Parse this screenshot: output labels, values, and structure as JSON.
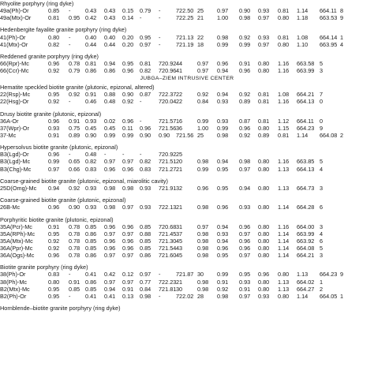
{
  "column_keys": [
    "id",
    "c1",
    "c2",
    "c3",
    "c4",
    "c5",
    "c6",
    "c7",
    "c8",
    "c9",
    "c10",
    "c11",
    "c12",
    "c13",
    "c14",
    "c15",
    "c16",
    "c17"
  ],
  "top_partial_text": "…",
  "blocks": [
    {
      "kind": "title",
      "text": "Rhyolite porphyry (ring dyke)"
    },
    {
      "kind": "row",
      "cells": [
        "49a(Ph)-Or",
        "0.85",
        "-",
        "0.43",
        "0.43",
        "0.15",
        "0.79",
        "-",
        "722.50",
        "25",
        "0.97",
        "0.90",
        "0.93",
        "0.81",
        "1.14",
        "664.11",
        "8"
      ]
    },
    {
      "kind": "row",
      "cells": [
        "49a(Mtx)-Or",
        "0.81",
        "0.95",
        "0.42",
        "0.43",
        "0.14",
        "-",
        "-",
        "722.25",
        "21",
        "1.00",
        "0.98",
        "0.97",
        "0.80",
        "1.18",
        "663.53",
        "9"
      ]
    },
    {
      "kind": "gap"
    },
    {
      "kind": "title",
      "text": "Hedenbergite fayalite granite porphyry (ring dyke)"
    },
    {
      "kind": "row",
      "cells": [
        "41(Ph)-Or",
        "0.80",
        "-",
        "0.40",
        "0.40",
        "0.20",
        "0.95",
        "-",
        "721.13",
        "22",
        "0.98",
        "0.92",
        "0.93",
        "0.81",
        "1.08",
        "664.14",
        "1"
      ]
    },
    {
      "kind": "row",
      "cells": [
        "41(Mtx)-Or",
        "0.82",
        "-",
        "0.44",
        "0.44",
        "0.20",
        "0.97",
        "-",
        "721.19",
        "18",
        "0.99",
        "0.99",
        "0.97",
        "0.80",
        "1.10",
        "663.95",
        "4"
      ]
    },
    {
      "kind": "gap"
    },
    {
      "kind": "title",
      "text": "Reddened granite porphyry (ring dyke)"
    },
    {
      "kind": "row",
      "cells": [
        "66(Rpr)-Mc",
        "0.96",
        "0.78",
        "0.81",
        "0.94",
        "0.95",
        "0.81",
        "720.92",
        "44",
        "0.97",
        "0.96",
        "0.91",
        "0.80",
        "1.16",
        "663.58",
        "5"
      ]
    },
    {
      "kind": "row",
      "cells": [
        "66(Ccr)-Mc",
        "0.92",
        "0.79",
        "0.86",
        "0.86",
        "0.96",
        "0.82",
        "720.96",
        "41",
        "0.97",
        "0.94",
        "0.96",
        "0.80",
        "1.16",
        "663.99",
        "3"
      ]
    },
    {
      "kind": "center",
      "text": "JUBGA–ZIEM INTRUSIVE CENTER"
    },
    {
      "kind": "title",
      "text": "Hematite speckled biotite granite (plutonic, epizonal, altered)"
    },
    {
      "kind": "row",
      "cells": [
        "22(Rsp)-Mc",
        "0.95",
        "0.92",
        "0.91",
        "0.88",
        "0.90",
        "0.87",
        "722.37",
        "22",
        "0.92",
        "0.94",
        "0.92",
        "0.81",
        "1.08",
        "664.21",
        "7"
      ]
    },
    {
      "kind": "row",
      "cells": [
        "22(Hsg)-Or",
        "0.92",
        "-",
        "0.46",
        "0.48",
        "0.92",
        "-",
        "720.04",
        "22",
        "0.84",
        "0.93",
        "0.89",
        "0.81",
        "1.16",
        "664.13",
        "0"
      ]
    },
    {
      "kind": "gap"
    },
    {
      "kind": "title",
      "text": "Drusy biotite granite (plutonic, epizonal)"
    },
    {
      "kind": "row",
      "cells": [
        "36A-Or",
        "0.96",
        "0.91",
        "0.93",
        "0.02",
        "0.96",
        "-",
        "721.57",
        "16",
        "0.99",
        "0.93",
        "0.87",
        "0.81",
        "1.12",
        "664.11",
        "0"
      ]
    },
    {
      "kind": "row",
      "cells": [
        "37(Wpr)-Or",
        "0.93",
        "0.75",
        "0.45",
        "0.45",
        "0.11",
        "0.96",
        "721.56",
        "36",
        "1.00",
        "0.99",
        "0.96",
        "0.80",
        "1.15",
        "664.23",
        "9"
      ]
    },
    {
      "kind": "row",
      "cells": [
        "37-Mc",
        "0.91",
        "0.89",
        "0.90",
        "0.99",
        "0.99",
        "0.90",
        "0.90",
        "721.56",
        "25",
        "0.98",
        "0.92",
        "0.89",
        "0.81",
        "1.14",
        "664.08",
        "2"
      ]
    },
    {
      "kind": "gap"
    },
    {
      "kind": "title",
      "text": "Hypersolvus biotite granite (plutonic, epizonal)"
    },
    {
      "kind": "row",
      "cells": [
        "B3(Lgd)-Or",
        "0.96",
        "-",
        "0.48",
        "-",
        "-",
        "-",
        "720.92",
        "25",
        "",
        "",
        "",
        "",
        "",
        "",
        ""
      ]
    },
    {
      "kind": "row",
      "cells": [
        "B3(Lgd)-Mc",
        "0.99",
        "0.65",
        "0.82",
        "0.97",
        "0.97",
        "0.82",
        "721.51",
        "20",
        "0.98",
        "0.94",
        "0.98",
        "0.80",
        "1.16",
        "663.85",
        "5"
      ]
    },
    {
      "kind": "row",
      "cells": [
        "B3(Chg)-Mc",
        "0.97",
        "0.66",
        "0.83",
        "0.96",
        "0.96",
        "0.83",
        "721.27",
        "21",
        "0.99",
        "0.95",
        "0.97",
        "0.80",
        "1.13",
        "664.13",
        "4"
      ]
    },
    {
      "kind": "gap"
    },
    {
      "kind": "title",
      "text": "Coarse-grained biotite granite (plutonic, epizonal, miarolitic cavity)"
    },
    {
      "kind": "row",
      "cells": [
        "25D(Omg)-Mc",
        "0.94",
        "0.92",
        "0.93",
        "0.98",
        "0.98",
        "0.93",
        "721.91",
        "32",
        "0.96",
        "0.95",
        "0.94",
        "0.80",
        "1.13",
        "664.73",
        "3"
      ]
    },
    {
      "kind": "gap"
    },
    {
      "kind": "title",
      "text": "Coarse-grained biotite granite (plutonic, epizonal)"
    },
    {
      "kind": "row",
      "cells": [
        "26B-Mc",
        "0.96",
        "0.90",
        "0.93",
        "0.98",
        "0.97",
        "0.93",
        "722.13",
        "21",
        "0.98",
        "0.96",
        "0.93",
        "0.80",
        "1.14",
        "664.28",
        "6"
      ]
    },
    {
      "kind": "gap"
    },
    {
      "kind": "title",
      "text": "Porphyritic biotite granite (plutonic, epizonal)"
    },
    {
      "kind": "row",
      "cells": [
        "35A(Pcr)-Mc",
        "0.91",
        "0.78",
        "0.85",
        "0.96",
        "0.96",
        "0.85",
        "720.68",
        "31",
        "0.97",
        "0.94",
        "0.96",
        "0.80",
        "1.16",
        "664.00",
        "3"
      ]
    },
    {
      "kind": "row",
      "cells": [
        "35A(RPh)-Mc",
        "0.95",
        "0.78",
        "0.86",
        "0.97",
        "0.97",
        "0.88",
        "721.45",
        "37",
        "0.98",
        "0.93",
        "0.97",
        "0.80",
        "1.14",
        "663.99",
        "4"
      ]
    },
    {
      "kind": "row",
      "cells": [
        "35A(Mtx)-Mc",
        "0.92",
        "0.78",
        "0.85",
        "0.96",
        "0.96",
        "0.85",
        "721.30",
        "45",
        "0.98",
        "0.94",
        "0.96",
        "0.80",
        "1.14",
        "663.92",
        "6"
      ]
    },
    {
      "kind": "row",
      "cells": [
        "36A(Ppr)-Mc",
        "0.92",
        "0.78",
        "0.85",
        "0.96",
        "0.96",
        "0.85",
        "721.54",
        "43",
        "0.98",
        "0.96",
        "0.96",
        "0.80",
        "1.14",
        "664.08",
        "5"
      ]
    },
    {
      "kind": "row",
      "cells": [
        "36A(Ogs)-Mc",
        "0.96",
        "0.78",
        "0.86",
        "0.97",
        "0.97",
        "0.86",
        "721.60",
        "45",
        "0.98",
        "0.95",
        "0.97",
        "0.80",
        "1.14",
        "664.21",
        "3"
      ]
    },
    {
      "kind": "gap"
    },
    {
      "kind": "title",
      "text": "Biotite granite porphyry (ring dyke)"
    },
    {
      "kind": "row",
      "cells": [
        "38(Ph)-Or",
        "0.83",
        "-",
        "0.41",
        "0.42",
        "0.12",
        "0.97",
        "-",
        "721.87",
        "30",
        "0.99",
        "0.95",
        "0.96",
        "0.80",
        "1.13",
        "664.23",
        "9"
      ]
    },
    {
      "kind": "row",
      "cells": [
        "38(Ph)-Mc",
        "0.80",
        "0.91",
        "0.86",
        "0.97",
        "0.97",
        "0.77",
        "722.23",
        "21",
        "0.98",
        "0.91",
        "0.93",
        "0.80",
        "1.13",
        "664.02",
        "1"
      ]
    },
    {
      "kind": "row",
      "cells": [
        "B2(Mtx)-Mc",
        "0.95",
        "0.85",
        "0.85",
        "0.94",
        "0.91",
        "0.84",
        "721.81",
        "30",
        "0.98",
        "0.92",
        "0.91",
        "0.80",
        "1.13",
        "664.27",
        "2"
      ]
    },
    {
      "kind": "row",
      "cells": [
        "B2(Ph)-Or",
        "0.95",
        "-",
        "0.41",
        "0.41",
        "0.13",
        "0.98",
        "-",
        "722.02",
        "28",
        "0.98",
        "0.97",
        "0.93",
        "0.80",
        "1.14",
        "664.05",
        "1"
      ]
    },
    {
      "kind": "gap"
    },
    {
      "kind": "title",
      "text": "Hornblende–biotite granite porphyry (ring dyke)"
    }
  ]
}
